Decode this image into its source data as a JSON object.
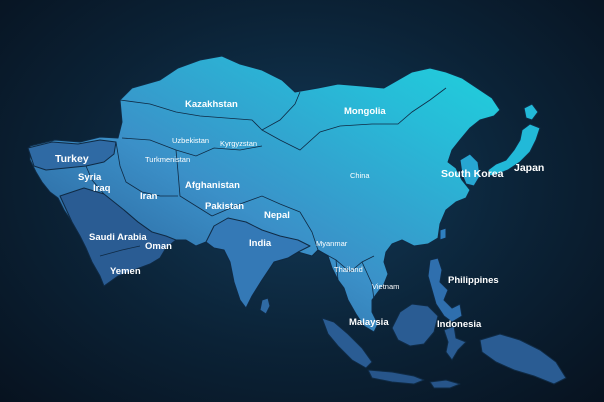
{
  "map": {
    "region": "Asia",
    "colors": {
      "background_center": "#123a58",
      "background_edge": "#07121f",
      "land_light": "#22c9d8",
      "land_mid": "#3a8fc8",
      "land_dark": "#244f86",
      "border": "#0f2a44",
      "label": "#ffffff"
    },
    "labels": {
      "kazakhstan": "Kazakhstan",
      "mongolia": "Mongolia",
      "uzbekistan": "Uzbekistan",
      "kyrgyzstan": "Kyrgyzstan",
      "turkmenistan": "Turkmenistan",
      "turkey": "Turkey",
      "syria": "Syria",
      "iraq": "Iraq",
      "iran": "Iran",
      "afghanistan": "Afghanistan",
      "pakistan": "Pakistan",
      "saudi_arabia": "Saudi Arabia",
      "oman": "Oman",
      "yemen": "Yemen",
      "china": "China",
      "nepal": "Nepal",
      "india": "India",
      "myanmar": "Myanmar",
      "thailand": "Thailand",
      "vietnam": "Vietnam",
      "south_korea": "South Korea",
      "japan": "Japan",
      "philippines": "Philippines",
      "malaysia": "Malaysia",
      "indonesia": "Indonesia"
    }
  }
}
